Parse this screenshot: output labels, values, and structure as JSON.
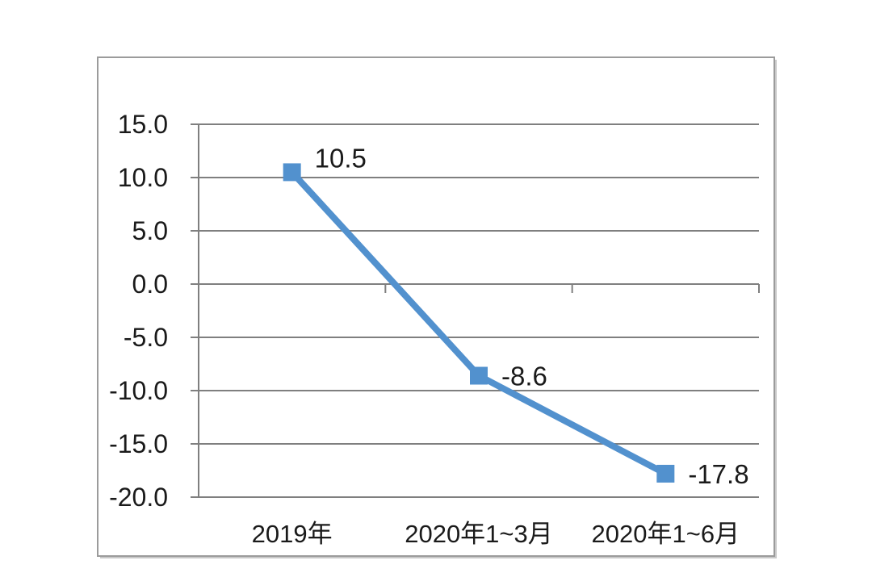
{
  "page": {
    "background_color": "#ffffff"
  },
  "chart_data": {
    "type": "line",
    "title": "",
    "xlabel": "",
    "ylabel": "(%)",
    "categories": [
      "2019年",
      "2020年1~3月",
      "2020年1~6月"
    ],
    "values": [
      10.5,
      -8.6,
      -17.8
    ],
    "data_labels": [
      "10.5",
      "-8.6",
      "-17.8"
    ],
    "yticks": [
      15.0,
      10.0,
      5.0,
      0.0,
      -5.0,
      -10.0,
      -15.0,
      -20.0
    ],
    "ytick_labels": [
      "15.0",
      "10.0",
      "5.0",
      "0.0",
      "-5.0",
      "-10.0",
      "-15.0",
      "-20.0"
    ],
    "ylim": [
      -20.0,
      15.0
    ],
    "grid": true,
    "legend": "none",
    "marker": "square",
    "line_color": "#5291CE",
    "gridline_color": "#7f7f7f",
    "frame_border_color": "#9b9b9b",
    "frame_shadow_color": "#c9c9c9",
    "text_color": "#1a1a1a"
  }
}
